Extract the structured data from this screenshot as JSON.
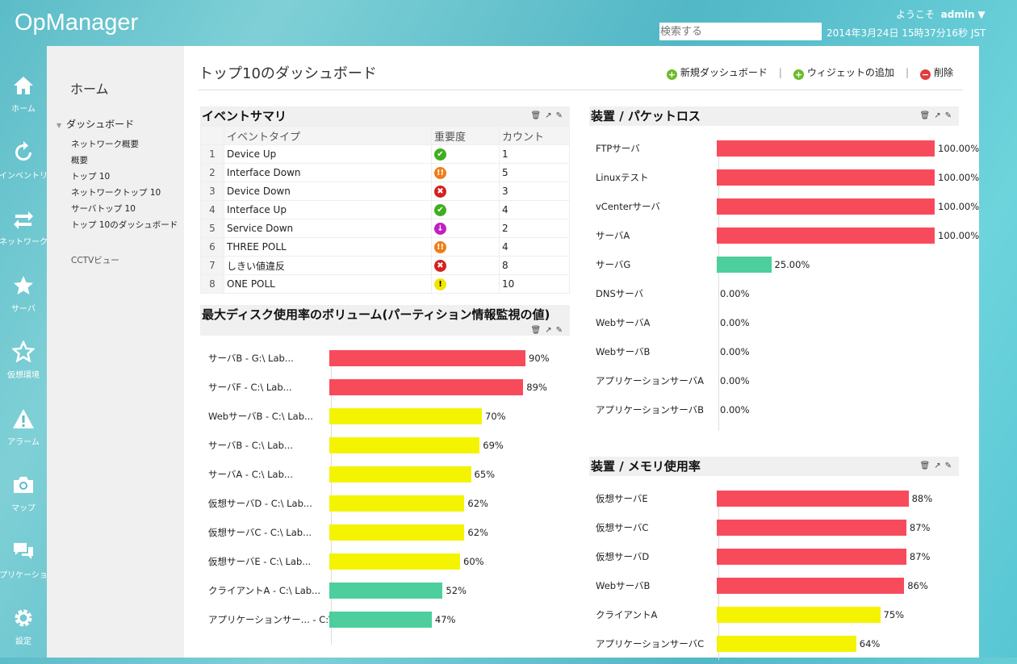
{
  "app": {
    "title": "OpManager",
    "welcome": "ようこそ",
    "user": "admin",
    "search_placeholder": "検索する",
    "datetime": "2014年3月24日  15時37分16秒 JST"
  },
  "rail": [
    {
      "label": "ホーム",
      "icon": "home-icon"
    },
    {
      "label": "インベントリ",
      "icon": "refresh-icon"
    },
    {
      "label": "ネットワーク",
      "icon": "arrows-icon"
    },
    {
      "label": "サーバ",
      "icon": "star-icon"
    },
    {
      "label": "仮想環境",
      "icon": "star-outline-icon"
    },
    {
      "label": "アラーム",
      "icon": "warning-icon"
    },
    {
      "label": "マップ",
      "icon": "camera-icon"
    },
    {
      "label": "アプリケーション",
      "icon": "chat-icon"
    },
    {
      "label": "設定",
      "icon": "gear-icon"
    }
  ],
  "nav": {
    "home": "ホーム",
    "dashboard": "ダッシュボード",
    "items": [
      "ネットワーク概要",
      "概要",
      "トップ 10",
      "ネットワークトップ 10",
      "サーバトップ 10",
      "トップ 10のダッシュボード"
    ],
    "cctv": "CCTVビュー"
  },
  "page": {
    "title": "トップ10のダッシュボード",
    "new_dashboard": "新規ダッシュボード",
    "add_widget": "ウィジェットの追加",
    "delete": "削除"
  },
  "events": {
    "title": "イベントサマリ",
    "headers": [
      "イベントタイプ",
      "重要度",
      "カウント"
    ],
    "rows": [
      {
        "n": "1",
        "type": "Device Up",
        "sev": "clear",
        "count": "1"
      },
      {
        "n": "2",
        "type": "Interface Down",
        "sev": "major",
        "count": "5"
      },
      {
        "n": "3",
        "type": "Device Down",
        "sev": "critical",
        "count": "3"
      },
      {
        "n": "4",
        "type": "Interface Up",
        "sev": "clear",
        "count": "4"
      },
      {
        "n": "5",
        "type": "Service Down",
        "sev": "service",
        "count": "2"
      },
      {
        "n": "6",
        "type": "THREE POLL",
        "sev": "major",
        "count": "4"
      },
      {
        "n": "7",
        "type": "しきい値違反",
        "sev": "critical",
        "count": "8"
      },
      {
        "n": "8",
        "type": "ONE POLL",
        "sev": "warning",
        "count": "10"
      }
    ]
  },
  "colors": {
    "red": "#f74b5c",
    "yellow": "#f4f300",
    "green": "#4ccf9c"
  },
  "chart_data": [
    {
      "type": "bar",
      "title": "最大ディスク使用率のボリューム(パーティション情報監視の値)",
      "categories": [
        "サーバB - G:\\ Lab...",
        "サーバF - C:\\ Lab...",
        "WebサーバB - C:\\ Lab...",
        "サーバB - C:\\ Lab...",
        "サーバA - C:\\ Lab...",
        "仮想サーバD - C:\\ Lab...",
        "仮想サーバC - C:\\ Lab...",
        "仮想サーバE - C:\\ Lab...",
        "クライアントA - C:\\ Lab...",
        "アプリケーションサー... - C:\\ Lab..."
      ],
      "values": [
        90,
        89,
        70,
        69,
        65,
        62,
        62,
        60,
        52,
        47
      ],
      "labels": [
        "90%",
        "89%",
        "70%",
        "69%",
        "65%",
        "62%",
        "62%",
        "60%",
        "52%",
        "47%"
      ],
      "colors": [
        "red",
        "red",
        "yellow",
        "yellow",
        "yellow",
        "yellow",
        "yellow",
        "yellow",
        "green",
        "green"
      ]
    },
    {
      "type": "bar",
      "title": "装置 / パケットロス",
      "categories": [
        "FTPサーバ",
        "Linuxテスト",
        "vCenterサーバ",
        "サーバA",
        "サーバG",
        "DNSサーバ",
        "WebサーバA",
        "WebサーバB",
        "アプリケーションサーバA",
        "アプリケーションサーバB"
      ],
      "values": [
        100,
        100,
        100,
        100,
        25,
        0,
        0,
        0,
        0,
        0
      ],
      "labels": [
        "100.00%",
        "100.00%",
        "100.00%",
        "100.00%",
        "25.00%",
        "0.00%",
        "0.00%",
        "0.00%",
        "0.00%",
        "0.00%"
      ],
      "colors": [
        "red",
        "red",
        "red",
        "red",
        "green",
        "green",
        "green",
        "green",
        "green",
        "green"
      ]
    },
    {
      "type": "bar",
      "title": "装置 / メモリ使用率",
      "categories": [
        "仮想サーバE",
        "仮想サーバC",
        "仮想サーバD",
        "WebサーバB",
        "クライアントA",
        "アプリケーションサーバC"
      ],
      "values": [
        88,
        87,
        87,
        86,
        75,
        64
      ],
      "labels": [
        "88%",
        "87%",
        "87%",
        "86%",
        "75%",
        "64%"
      ],
      "colors": [
        "red",
        "red",
        "red",
        "red",
        "yellow",
        "yellow"
      ]
    }
  ]
}
